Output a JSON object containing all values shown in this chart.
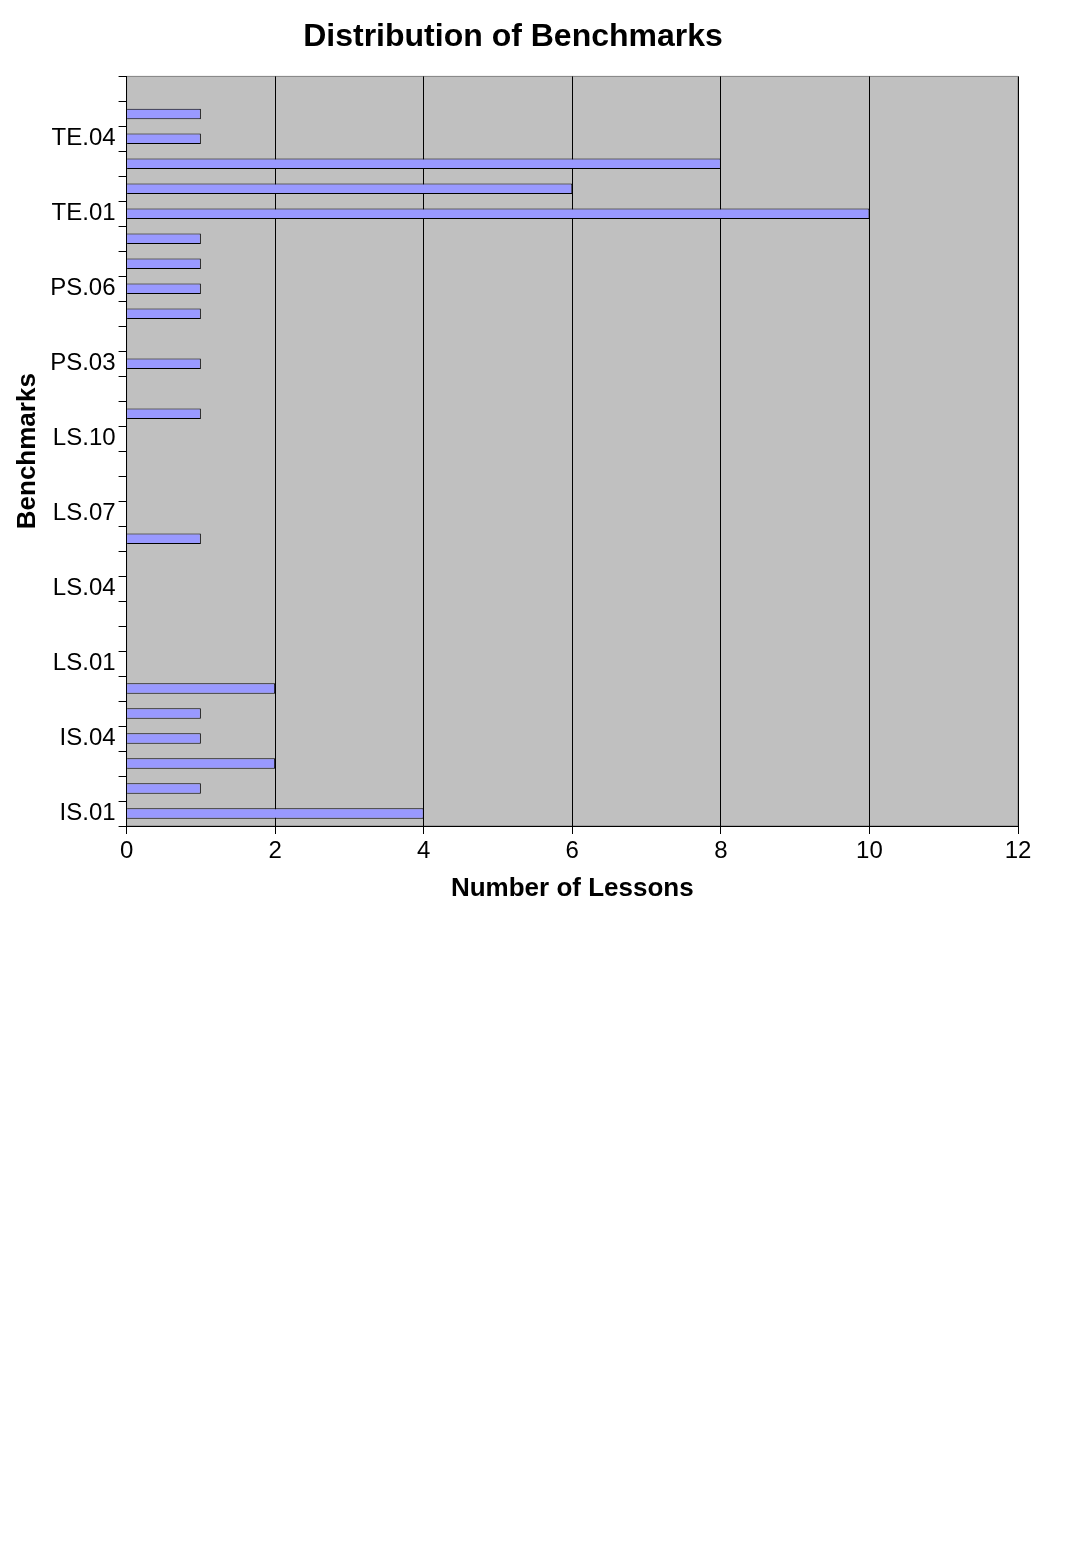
{
  "chart_data": {
    "type": "bar",
    "orientation": "horizontal",
    "title": "Distribution of Benchmarks",
    "xlabel": "Number of Lessons",
    "ylabel": "Benchmarks",
    "categories": [
      null,
      null,
      "TE.04",
      null,
      null,
      "TE.01",
      null,
      null,
      "PS.06",
      null,
      null,
      "PS.03",
      null,
      null,
      "LS.10",
      null,
      null,
      "LS.07",
      null,
      null,
      "LS.04",
      null,
      null,
      "LS.01",
      null,
      null,
      "IS.04",
      null,
      null,
      "IS.01"
    ],
    "values": [
      null,
      1,
      1,
      8,
      6,
      10,
      1,
      1,
      1,
      1,
      null,
      1,
      null,
      1,
      null,
      null,
      null,
      null,
      1,
      null,
      null,
      null,
      null,
      null,
      2,
      1,
      1,
      2,
      1,
      4
    ],
    "color": "#9999ff",
    "xlim": [
      0,
      12
    ],
    "xticks": [
      0,
      2,
      4,
      6,
      8,
      10,
      12
    ],
    "grid": "x",
    "legend": false
  }
}
